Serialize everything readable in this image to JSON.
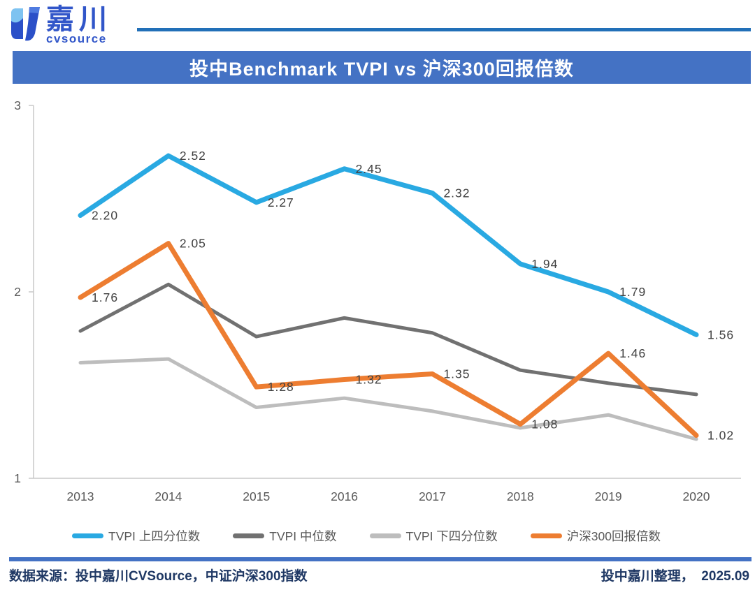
{
  "header": {
    "logo_name": "嘉川",
    "logo_subtext": "cvsource",
    "logo_icon": "cvsource-mark"
  },
  "title": "投中Benchmark TVPI vs 沪深300回报倍数",
  "chart_data": {
    "type": "line",
    "title": "投中Benchmark TVPI vs 沪深300回报倍数",
    "categories": [
      "2013",
      "2014",
      "2015",
      "2016",
      "2017",
      "2018",
      "2019",
      "2020"
    ],
    "series": [
      {
        "name": "TVPI 上四分位数",
        "color": "#29A9E2",
        "line_width": 7,
        "data_labels": true,
        "values": [
          2.2,
          2.52,
          2.27,
          2.45,
          2.32,
          1.94,
          1.79,
          1.56
        ]
      },
      {
        "name": "TVPI 中位数",
        "color": "#717171",
        "line_width": 5,
        "data_labels": false,
        "values": [
          1.58,
          1.83,
          1.55,
          1.65,
          1.57,
          1.37,
          1.3,
          1.24
        ]
      },
      {
        "name": "TVPI 下四分位数",
        "color": "#BDBDBD",
        "line_width": 5,
        "data_labels": false,
        "values": [
          1.41,
          1.43,
          1.17,
          1.22,
          1.15,
          1.06,
          1.13,
          1.0
        ]
      },
      {
        "name": "沪深300回报倍数",
        "color": "#ED7D31",
        "line_width": 7,
        "data_labels": true,
        "values": [
          1.76,
          2.05,
          1.28,
          1.32,
          1.35,
          1.08,
          1.46,
          1.02
        ]
      }
    ],
    "ylim": [
      1,
      3
    ],
    "yticks": [
      1,
      2,
      3
    ],
    "xlabel": "",
    "ylabel": "",
    "grid": false,
    "legend_position": "bottom"
  },
  "footer": {
    "source": "数据来源：投中嘉川CVSource，中证沪深300指数",
    "credit": "投中嘉川整理，  2025.09"
  }
}
